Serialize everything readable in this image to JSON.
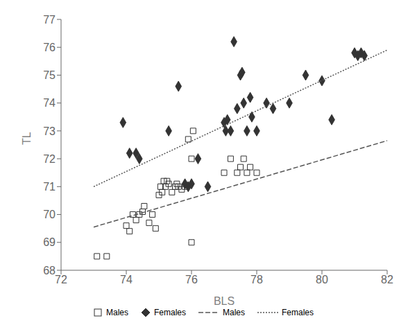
{
  "chart_data": {
    "type": "scatter",
    "xlabel": "BLS",
    "ylabel": "TL",
    "xlim": [
      72,
      82
    ],
    "ylim": [
      68,
      77
    ],
    "xticks": [
      72,
      74,
      76,
      78,
      80,
      82
    ],
    "yticks": [
      68,
      69,
      70,
      71,
      72,
      73,
      74,
      75,
      76,
      77
    ],
    "grid": false,
    "legend": "bottom",
    "series": [
      {
        "name": "Males",
        "type": "scatter",
        "marker": "square",
        "color": "#333333",
        "x": [
          73.1,
          73.4,
          74.0,
          74.1,
          74.2,
          74.3,
          74.4,
          74.5,
          74.55,
          74.7,
          74.8,
          74.9,
          75.0,
          75.05,
          75.1,
          75.15,
          75.2,
          75.25,
          75.3,
          75.4,
          75.5,
          75.55,
          75.6,
          75.7,
          75.8,
          75.9,
          76.0,
          76.05,
          76.0,
          77.0,
          77.2,
          77.4,
          77.5,
          77.6,
          77.7,
          77.8,
          78.0
        ],
        "values": [
          68.5,
          68.5,
          69.6,
          69.4,
          70.0,
          69.8,
          70.0,
          70.1,
          70.3,
          69.7,
          70.0,
          69.5,
          70.7,
          71.0,
          70.8,
          71.2,
          71.0,
          71.2,
          71.1,
          70.8,
          71.0,
          71.1,
          71.0,
          70.9,
          71.0,
          72.7,
          72.0,
          73.0,
          69.0,
          71.5,
          72.0,
          71.5,
          71.7,
          72.0,
          71.5,
          71.7,
          71.5
        ]
      },
      {
        "name": "Females",
        "type": "scatter",
        "marker": "diamond",
        "color": "#333333",
        "x": [
          73.9,
          74.1,
          74.3,
          74.4,
          75.3,
          75.6,
          75.8,
          75.9,
          76.0,
          76.2,
          76.5,
          77.0,
          77.05,
          77.1,
          77.2,
          77.3,
          77.4,
          77.5,
          77.55,
          77.6,
          77.7,
          77.8,
          77.85,
          78.0,
          78.3,
          78.5,
          79.0,
          79.5,
          80.0,
          80.3,
          81.0,
          81.1,
          81.2,
          81.3
        ],
        "values": [
          73.3,
          72.2,
          72.2,
          72.0,
          73.0,
          74.6,
          71.1,
          71.0,
          71.1,
          72.0,
          71.0,
          73.3,
          73.0,
          73.4,
          73.0,
          76.2,
          73.8,
          75.0,
          75.1,
          74.0,
          73.0,
          74.2,
          73.5,
          73.0,
          74.0,
          73.8,
          74.0,
          75.0,
          74.8,
          73.4,
          75.8,
          75.7,
          75.8,
          75.7
        ]
      },
      {
        "name": "Males",
        "type": "line",
        "line_style": "dashed",
        "color": "#555555",
        "x": [
          73.0,
          82.0
        ],
        "values": [
          69.55,
          72.65
        ]
      },
      {
        "name": "Females",
        "type": "line",
        "line_style": "dotted",
        "color": "#555555",
        "x": [
          73.0,
          82.0
        ],
        "values": [
          71.0,
          75.9
        ]
      }
    ]
  }
}
